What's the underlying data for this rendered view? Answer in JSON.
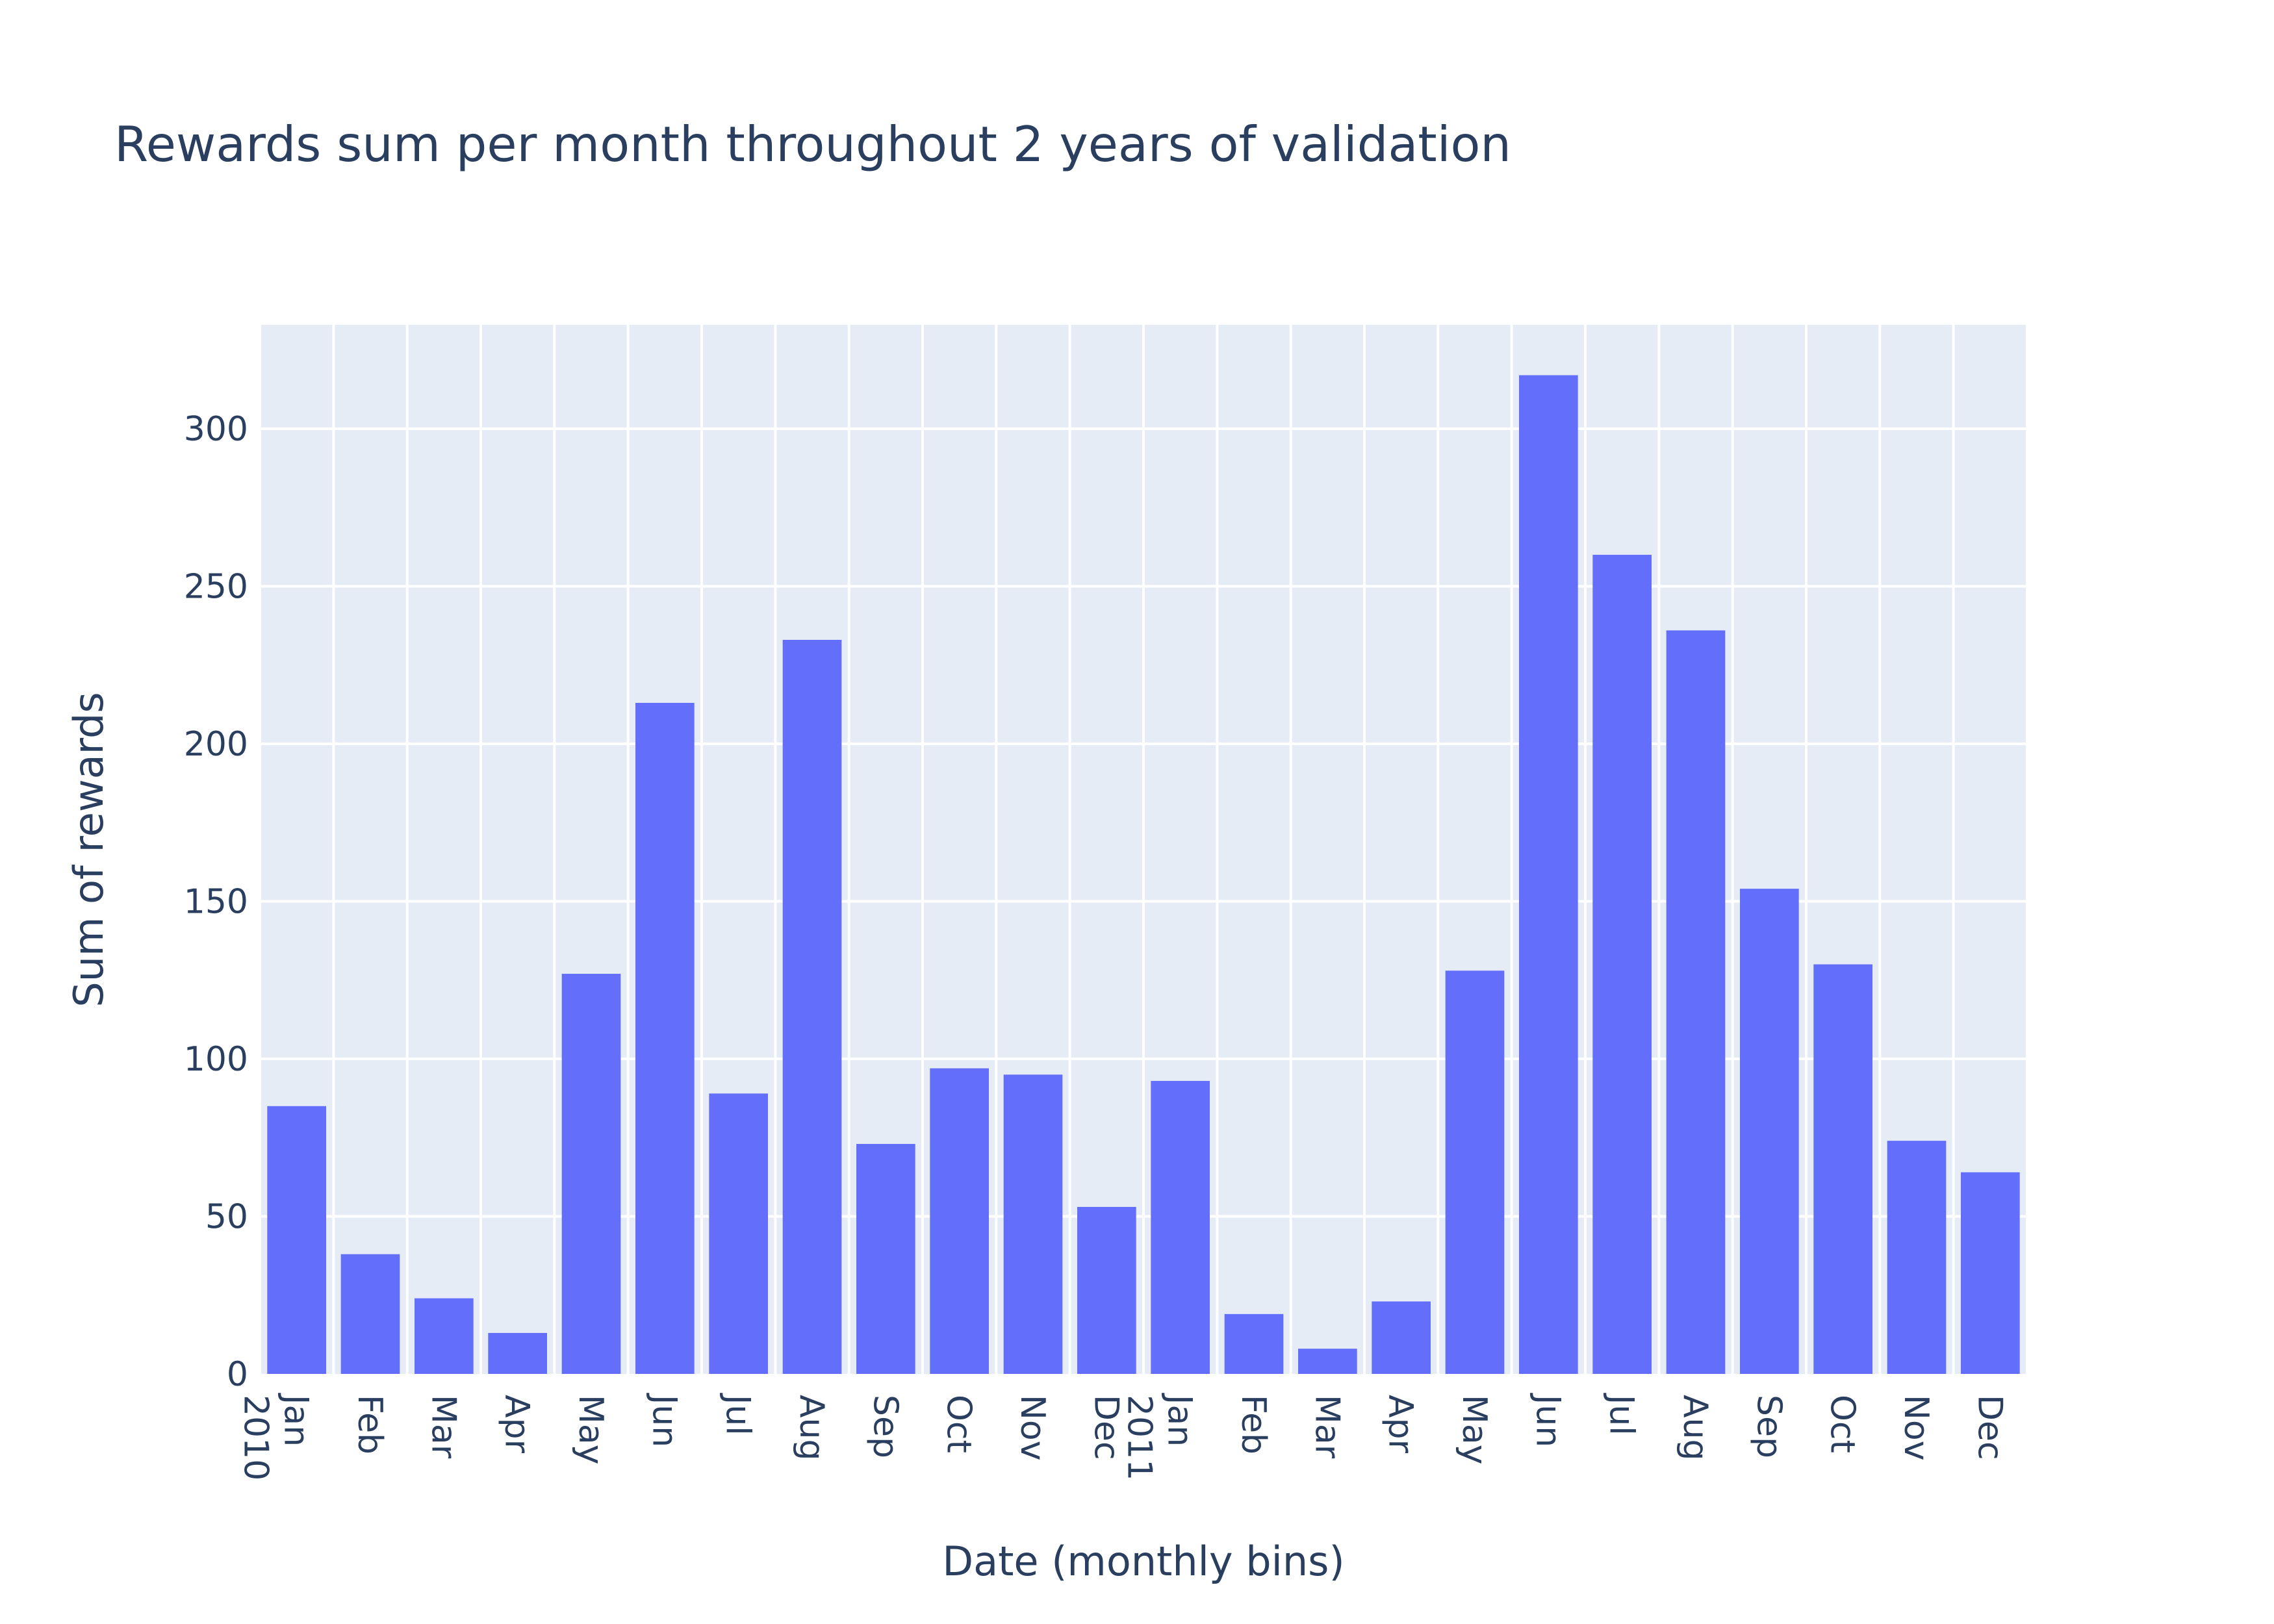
{
  "chart_data": {
    "type": "bar",
    "title": "Rewards sum per month throughout 2 years of validation",
    "xlabel": "Date (monthly bins)",
    "ylabel": "Sum of rewards",
    "x_tick_labels": [
      {
        "month": "Jan",
        "year": "2010"
      },
      {
        "month": "Feb"
      },
      {
        "month": "Mar"
      },
      {
        "month": "Apr"
      },
      {
        "month": "May"
      },
      {
        "month": "Jun"
      },
      {
        "month": "Jul"
      },
      {
        "month": "Aug"
      },
      {
        "month": "Sep"
      },
      {
        "month": "Oct"
      },
      {
        "month": "Nov"
      },
      {
        "month": "Dec"
      },
      {
        "month": "Jan",
        "year": "2011"
      },
      {
        "month": "Feb"
      },
      {
        "month": "Mar"
      },
      {
        "month": "Apr"
      },
      {
        "month": "May"
      },
      {
        "month": "Jun"
      },
      {
        "month": "Jul"
      },
      {
        "month": "Aug"
      },
      {
        "month": "Sep"
      },
      {
        "month": "Oct"
      },
      {
        "month": "Nov"
      },
      {
        "month": "Dec"
      }
    ],
    "categories": [
      "2010-01",
      "2010-02",
      "2010-03",
      "2010-04",
      "2010-05",
      "2010-06",
      "2010-07",
      "2010-08",
      "2010-09",
      "2010-10",
      "2010-11",
      "2010-12",
      "2011-01",
      "2011-02",
      "2011-03",
      "2011-04",
      "2011-05",
      "2011-06",
      "2011-07",
      "2011-08",
      "2011-09",
      "2011-10",
      "2011-11",
      "2011-12"
    ],
    "values": [
      85,
      38,
      24,
      13,
      127,
      213,
      89,
      233,
      73,
      97,
      95,
      53,
      93,
      19,
      8,
      23,
      128,
      317,
      260,
      236,
      154,
      130,
      74,
      64
    ],
    "ylim": [
      0,
      333
    ],
    "yticks": [
      0,
      50,
      100,
      150,
      200,
      250,
      300
    ],
    "grid": true,
    "bar_color": "#636efa",
    "plot_bg": "#e5ecf6",
    "grid_color": "#ffffff",
    "text_color": "#2a3f5f"
  }
}
